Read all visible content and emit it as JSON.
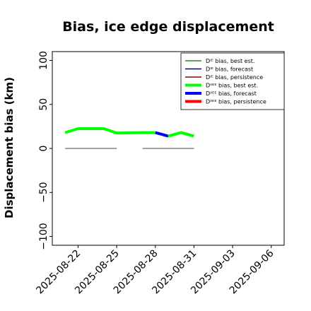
{
  "chart_data": {
    "type": "line",
    "title": "Bias, ice edge displacement",
    "ylabel": "Displacement bias (km)",
    "xlabel": "",
    "xlim": [
      "2025-08-20",
      "2025-09-07"
    ],
    "ylim": [
      -110,
      110
    ],
    "yticks": [
      100,
      50,
      0,
      -50,
      -100
    ],
    "ytick_labels": [
      "100",
      "50",
      "0",
      "−50",
      "−100"
    ],
    "xticks": [
      "2025-08-22",
      "2025-08-25",
      "2025-08-28",
      "2025-08-31",
      "2025-09-03",
      "2025-09-06"
    ],
    "xtick_labels": [
      "2025-08-22",
      "2025-08-25",
      "2025-08-28",
      "2025-08-31",
      "2025-09-03",
      "2025-09-06"
    ],
    "highlighted_xtick": "2025-08-28",
    "highlight_color": "#228B22",
    "grid": false,
    "legend_position": "top-right",
    "legend": [
      {
        "label": "Dᴵᴱ bias, best est.",
        "color": "#228B22",
        "width": "thin"
      },
      {
        "label": "Dᴵᴱ bias, forecast",
        "color": "#00008B",
        "width": "thin"
      },
      {
        "label": "Dᴵᴱ bias, persistence",
        "color": "#8B0000",
        "width": "thin"
      },
      {
        "label": "Dᴵᴵᴱᴱ bias, best est.",
        "color": "#00FF00",
        "width": "thick"
      },
      {
        "label": "Dᴵᴵᴱᴱ bias, forecast",
        "color": "#0000FF",
        "width": "thick"
      },
      {
        "label": "Dᴵᴵᴱᴱ bias, persistence",
        "color": "#FF0000",
        "width": "thick"
      }
    ],
    "series": [
      {
        "name": "Dᴵᴵᴱᴱ bias, best est.",
        "color": "#00FF00",
        "width": "thick",
        "points": [
          [
            "2025-08-21",
            18
          ],
          [
            "2025-08-22",
            22.5
          ],
          [
            "2025-08-23",
            22.5
          ],
          [
            "2025-08-24",
            22.5
          ],
          [
            "2025-08-25",
            17.5
          ],
          [
            "2025-08-27",
            18
          ],
          [
            "2025-08-28",
            18
          ]
        ]
      },
      {
        "name": "Dᴵᴵᴱᴱ bias, forecast",
        "color": "#0000FF",
        "width": "thick",
        "points": [
          [
            "2025-08-28",
            18
          ],
          [
            "2025-08-29",
            14
          ]
        ]
      },
      {
        "name": "Dᴵᴵᴱᴱ bias, best est.",
        "color": "#00FF00",
        "width": "thick",
        "points": [
          [
            "2025-08-29",
            14
          ],
          [
            "2025-08-30",
            18
          ],
          [
            "2025-08-31",
            14
          ]
        ]
      },
      {
        "name": "zero reference",
        "color": "#808080",
        "width": "thin",
        "points": [
          [
            "2025-08-21",
            0
          ],
          [
            "2025-08-25",
            0
          ]
        ]
      },
      {
        "name": "zero reference",
        "color": "#808080",
        "width": "thin",
        "points": [
          [
            "2025-08-27",
            0
          ],
          [
            "2025-08-31",
            0
          ]
        ]
      }
    ]
  }
}
